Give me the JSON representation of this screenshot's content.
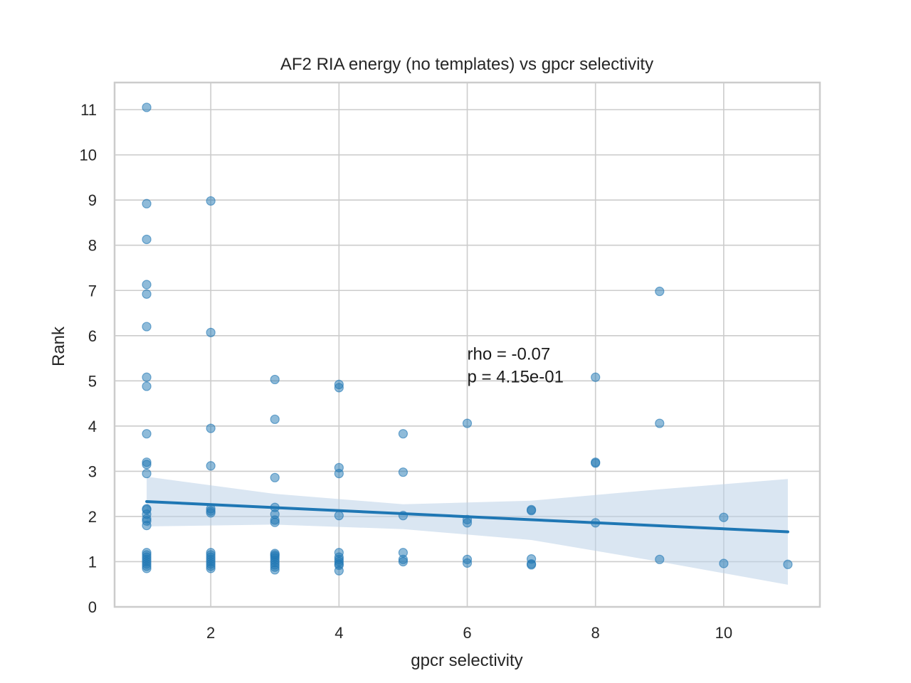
{
  "chart_data": {
    "type": "scatter",
    "title": "AF2 RIA energy (no templates) vs gpcr selectivity",
    "xlabel": "gpcr selectivity",
    "ylabel": "Rank",
    "xlim": [
      0.5,
      11.5
    ],
    "ylim": [
      0,
      11.6
    ],
    "xticks": [
      2,
      4,
      6,
      8,
      10
    ],
    "yticks": [
      0,
      1,
      2,
      3,
      4,
      5,
      6,
      7,
      8,
      9,
      10,
      11
    ],
    "grid": true,
    "point_color": "#1f77b4",
    "points": [
      {
        "x": 1,
        "y": 11.05
      },
      {
        "x": 1,
        "y": 8.92
      },
      {
        "x": 1,
        "y": 8.13
      },
      {
        "x": 1,
        "y": 7.13
      },
      {
        "x": 1,
        "y": 6.92
      },
      {
        "x": 1,
        "y": 6.2
      },
      {
        "x": 1,
        "y": 5.08
      },
      {
        "x": 1,
        "y": 4.88
      },
      {
        "x": 1,
        "y": 3.83
      },
      {
        "x": 1,
        "y": 3.2
      },
      {
        "x": 1,
        "y": 3.15
      },
      {
        "x": 1,
        "y": 2.95
      },
      {
        "x": 1,
        "y": 2.17
      },
      {
        "x": 1,
        "y": 2.15
      },
      {
        "x": 1,
        "y": 2.05
      },
      {
        "x": 1,
        "y": 1.95
      },
      {
        "x": 1,
        "y": 1.9
      },
      {
        "x": 1,
        "y": 1.8
      },
      {
        "x": 1,
        "y": 1.2
      },
      {
        "x": 1,
        "y": 1.15
      },
      {
        "x": 1,
        "y": 1.1
      },
      {
        "x": 1,
        "y": 1.05
      },
      {
        "x": 1,
        "y": 1.0
      },
      {
        "x": 1,
        "y": 0.95
      },
      {
        "x": 1,
        "y": 0.9
      },
      {
        "x": 1,
        "y": 0.85
      },
      {
        "x": 2,
        "y": 8.98
      },
      {
        "x": 2,
        "y": 6.07
      },
      {
        "x": 2,
        "y": 3.95
      },
      {
        "x": 2,
        "y": 3.12
      },
      {
        "x": 2,
        "y": 2.17
      },
      {
        "x": 2,
        "y": 2.12
      },
      {
        "x": 2,
        "y": 2.08
      },
      {
        "x": 2,
        "y": 1.2
      },
      {
        "x": 2,
        "y": 1.15
      },
      {
        "x": 2,
        "y": 1.1
      },
      {
        "x": 2,
        "y": 1.05
      },
      {
        "x": 2,
        "y": 1.0
      },
      {
        "x": 2,
        "y": 0.95
      },
      {
        "x": 2,
        "y": 0.9
      },
      {
        "x": 2,
        "y": 0.85
      },
      {
        "x": 3,
        "y": 5.03
      },
      {
        "x": 3,
        "y": 4.15
      },
      {
        "x": 3,
        "y": 2.86
      },
      {
        "x": 3,
        "y": 2.2
      },
      {
        "x": 3,
        "y": 2.05
      },
      {
        "x": 3,
        "y": 1.92
      },
      {
        "x": 3,
        "y": 1.87
      },
      {
        "x": 3,
        "y": 1.18
      },
      {
        "x": 3,
        "y": 1.15
      },
      {
        "x": 3,
        "y": 1.12
      },
      {
        "x": 3,
        "y": 1.08
      },
      {
        "x": 3,
        "y": 1.03
      },
      {
        "x": 3,
        "y": 0.98
      },
      {
        "x": 3,
        "y": 0.93
      },
      {
        "x": 3,
        "y": 0.88
      },
      {
        "x": 3,
        "y": 0.82
      },
      {
        "x": 4,
        "y": 4.92
      },
      {
        "x": 4,
        "y": 4.85
      },
      {
        "x": 4,
        "y": 3.08
      },
      {
        "x": 4,
        "y": 2.95
      },
      {
        "x": 4,
        "y": 2.02
      },
      {
        "x": 4,
        "y": 1.2
      },
      {
        "x": 4,
        "y": 1.1
      },
      {
        "x": 4,
        "y": 1.05
      },
      {
        "x": 4,
        "y": 1.0
      },
      {
        "x": 4,
        "y": 0.95
      },
      {
        "x": 4,
        "y": 0.92
      },
      {
        "x": 4,
        "y": 0.8
      },
      {
        "x": 5,
        "y": 3.83
      },
      {
        "x": 5,
        "y": 2.98
      },
      {
        "x": 5,
        "y": 2.02
      },
      {
        "x": 5,
        "y": 1.2
      },
      {
        "x": 5,
        "y": 1.05
      },
      {
        "x": 5,
        "y": 1.0
      },
      {
        "x": 6,
        "y": 4.06
      },
      {
        "x": 6,
        "y": 1.93
      },
      {
        "x": 6,
        "y": 1.86
      },
      {
        "x": 6,
        "y": 1.05
      },
      {
        "x": 6,
        "y": 0.97
      },
      {
        "x": 7,
        "y": 2.15
      },
      {
        "x": 7,
        "y": 2.13
      },
      {
        "x": 7,
        "y": 1.06
      },
      {
        "x": 7,
        "y": 0.95
      },
      {
        "x": 7,
        "y": 0.93
      },
      {
        "x": 8,
        "y": 5.08
      },
      {
        "x": 8,
        "y": 3.2
      },
      {
        "x": 8,
        "y": 3.18
      },
      {
        "x": 8,
        "y": 1.86
      },
      {
        "x": 9,
        "y": 6.98
      },
      {
        "x": 9,
        "y": 4.06
      },
      {
        "x": 9,
        "y": 1.05
      },
      {
        "x": 10,
        "y": 1.98
      },
      {
        "x": 10,
        "y": 0.96
      },
      {
        "x": 11,
        "y": 0.94
      }
    ],
    "regression_line": {
      "x": [
        1,
        11
      ],
      "y": [
        2.33,
        1.66
      ],
      "color": "#1f77b4"
    },
    "confidence_band": {
      "x": [
        1,
        3,
        5,
        7,
        9,
        11
      ],
      "upper": [
        2.88,
        2.5,
        2.27,
        2.35,
        2.6,
        2.83
      ],
      "lower": [
        1.78,
        1.82,
        1.72,
        1.48,
        1.0,
        0.49
      ],
      "color": "#bcd2e8"
    },
    "annotation": {
      "x": 6,
      "y": 5.0,
      "lines": [
        "rho = -0.07",
        "p = 4.15e-01"
      ]
    }
  }
}
